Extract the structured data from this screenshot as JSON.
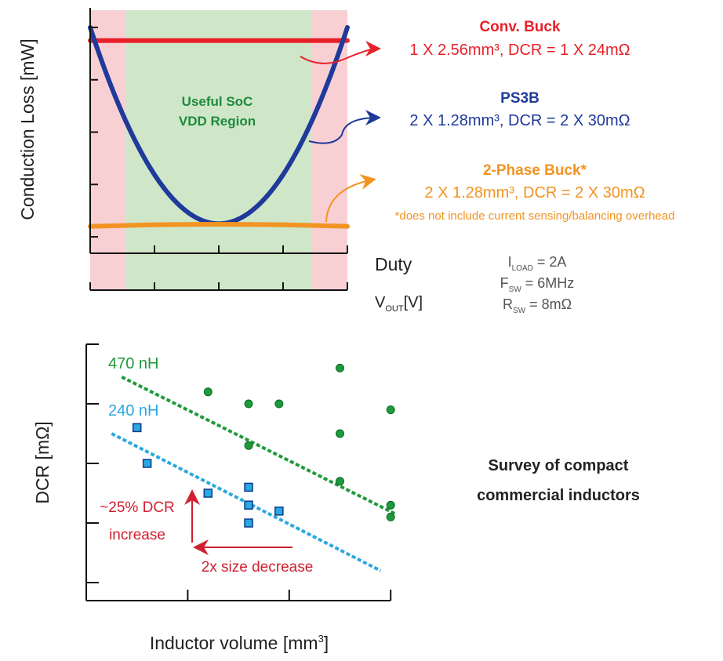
{
  "chart_data": [
    {
      "type": "line",
      "ylabel": "Conduction Loss [mW]",
      "xlabel": "Duty",
      "x2label": {
        "main": "V",
        "sub": "OUT",
        "unit": "[V]"
      },
      "xlim": [
        0.1,
        0.9
      ],
      "ylim": [
        87,
        133
      ],
      "xticks": [
        "0.1",
        "0.3",
        "0.5",
        "0.7",
        "0.9"
      ],
      "x2ticks": [
        "0.18",
        "0.54",
        "0.9",
        "1.26",
        "1.62"
      ],
      "yticks": [
        90,
        100,
        110,
        120,
        130
      ],
      "regions": [
        {
          "from": 0.1,
          "to": 0.21,
          "color": "#f8d0d4"
        },
        {
          "from": 0.21,
          "to": 0.79,
          "color": "#cfe6c9",
          "label": [
            "Useful SoC",
            "VDD Region"
          ]
        },
        {
          "from": 0.79,
          "to": 0.9,
          "color": "#f8d0d4"
        }
      ],
      "series": [
        {
          "name": "Conv. Buck",
          "detail": "1 X 2.56mm³, DCR = 1 X 24mΩ",
          "color": "#e8202a",
          "x": [
            0.1,
            0.3,
            0.5,
            0.7,
            0.9
          ],
          "y": [
            127.5,
            127.5,
            127.5,
            127.5,
            127.5
          ]
        },
        {
          "name": "PS3B",
          "detail": "2 X 1.28mm³, DCR = 2 X 30mΩ",
          "color": "#1f3a9a",
          "x": [
            0.1,
            0.2,
            0.3,
            0.4,
            0.5,
            0.6,
            0.7,
            0.8,
            0.9
          ],
          "y": [
            130,
            113.6,
            101.9,
            94.8,
            92.5,
            94.8,
            101.9,
            113.6,
            130
          ]
        },
        {
          "name": "2-Phase Buck*",
          "detail": "2 X 1.28mm³, DCR = 2 X 30mΩ",
          "color": "#f29422",
          "x": [
            0.1,
            0.3,
            0.5,
            0.7,
            0.9
          ],
          "y": [
            92,
            92.3,
            92.4,
            92.3,
            92
          ]
        }
      ],
      "footnote": "*does not include current sensing/balancing overhead",
      "conditions": [
        {
          "main": "I",
          "sub": "LOAD",
          "rest": " = 2A"
        },
        {
          "main": "F",
          "sub": "SW",
          "rest": " = 6MHz"
        },
        {
          "main": "R",
          "sub": "SW",
          "rest": " = 8mΩ"
        }
      ]
    },
    {
      "type": "scatter",
      "title": [
        "Survey of compact",
        "commercial inductors"
      ],
      "ylabel": "DCR [mΩ]",
      "xlabel": "Inductor volume [mm",
      "xlabel_sup": "3",
      "xlabel_end": "]",
      "xlim": [
        0,
        6
      ],
      "ylim": [
        7,
        50
      ],
      "xticks": [
        0,
        2,
        4,
        6
      ],
      "yticks": [
        10,
        20,
        30,
        40,
        50
      ],
      "series": [
        {
          "name": "470 nH",
          "color": "#1e9a3c",
          "marker": "circle",
          "x": [
            2.4,
            3.2,
            3.8,
            5.0,
            6.0,
            5.0,
            3.2,
            5.0,
            6.0,
            6.0
          ],
          "y": [
            42,
            40,
            40,
            46,
            39,
            35,
            33,
            27,
            23,
            21
          ],
          "trend": {
            "x": [
              0.7,
              6.1
            ],
            "y": [
              44.5,
              21.5
            ]
          }
        },
        {
          "name": "240 nH",
          "color": "#2aa8e0",
          "marker": "square",
          "x": [
            1.0,
            1.2,
            2.4,
            3.2,
            3.2,
            3.2,
            3.8
          ],
          "y": [
            36,
            30,
            25,
            26,
            23,
            20,
            22
          ],
          "trend": {
            "x": [
              0.5,
              5.8
            ],
            "y": [
              35,
              12
            ]
          }
        }
      ],
      "annotations": {
        "dcr_increase": [
          "~25% DCR",
          "increase"
        ],
        "size_decrease": "2x size decrease",
        "color": "#d02030"
      }
    }
  ]
}
